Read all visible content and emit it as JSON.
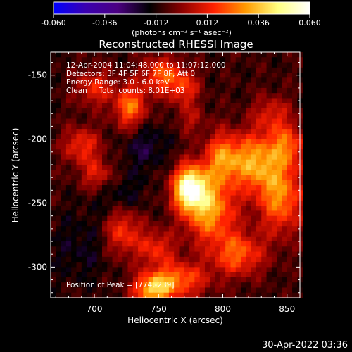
{
  "chart_data": {
    "type": "heatmap",
    "title": "Reconstructed RHESSI Image",
    "xlabel": "Heliocentric X (arcsec)",
    "ylabel": "Heliocentric Y (arcsec)",
    "xlim": [
      666,
      860
    ],
    "ylim": [
      -324,
      -132
    ],
    "x_ticks": [
      700,
      750,
      800,
      850
    ],
    "y_ticks": [
      -150,
      -200,
      -250,
      -300
    ],
    "colorbar": {
      "range": [
        -0.06,
        0.06
      ],
      "ticks": [
        "-0.060",
        "-0.036",
        "-0.012",
        "0.012",
        "0.036",
        "0.060"
      ],
      "unit": "(photons cm⁻² s⁻¹ asec⁻²)",
      "colors": [
        "#0000ff",
        "#3a00b0",
        "#4b0082",
        "#000000",
        "#8b0000",
        "#ff2000",
        "#ff9a00",
        "#ffff80",
        "#ffffff"
      ]
    },
    "annotations": {
      "line1": "12-Apr-2004 11:04:48.000 to 11:07:12.000",
      "line2": "Detectors: 3F 4F 5F 6F 7F 8F, Att 0",
      "line3": "Energy Range: 3.0 - 6.0 keV",
      "line4": "Clean     Total counts: 8.01E+03",
      "peak": "Position of Peak = [774,-239]"
    },
    "peak_position": [
      774,
      -239
    ],
    "sources": [
      {
        "x": 774,
        "y": -238,
        "amp": 0.062,
        "sx": 9,
        "sy": 12
      },
      {
        "x": 790,
        "y": -255,
        "amp": 0.04,
        "sx": 14,
        "sy": 18
      },
      {
        "x": 800,
        "y": -215,
        "amp": 0.035,
        "sx": 10,
        "sy": 14
      },
      {
        "x": 825,
        "y": -218,
        "amp": 0.038,
        "sx": 12,
        "sy": 16
      },
      {
        "x": 845,
        "y": -245,
        "amp": 0.036,
        "sx": 12,
        "sy": 20
      },
      {
        "x": 850,
        "y": -205,
        "amp": 0.028,
        "sx": 10,
        "sy": 12
      },
      {
        "x": 812,
        "y": -290,
        "amp": 0.03,
        "sx": 14,
        "sy": 12
      },
      {
        "x": 765,
        "y": -310,
        "amp": 0.032,
        "sx": 16,
        "sy": 10
      },
      {
        "x": 748,
        "y": -285,
        "amp": 0.022,
        "sx": 10,
        "sy": 10
      },
      {
        "x": 722,
        "y": -272,
        "amp": 0.026,
        "sx": 10,
        "sy": 14
      },
      {
        "x": 745,
        "y": -318,
        "amp": 0.04,
        "sx": 10,
        "sy": 8
      },
      {
        "x": 728,
        "y": -175,
        "amp": 0.034,
        "sx": 9,
        "sy": 12
      },
      {
        "x": 752,
        "y": -150,
        "amp": 0.03,
        "sx": 10,
        "sy": 10
      },
      {
        "x": 770,
        "y": -160,
        "amp": 0.024,
        "sx": 8,
        "sy": 10
      },
      {
        "x": 700,
        "y": -160,
        "amp": 0.022,
        "sx": 10,
        "sy": 10
      },
      {
        "x": 690,
        "y": -205,
        "amp": 0.024,
        "sx": 10,
        "sy": 10
      },
      {
        "x": 702,
        "y": -228,
        "amp": 0.02,
        "sx": 9,
        "sy": 9
      },
      {
        "x": 838,
        "y": -180,
        "amp": 0.018,
        "sx": 10,
        "sy": 10
      },
      {
        "x": 775,
        "y": -185,
        "amp": 0.012,
        "sx": 8,
        "sy": 8
      },
      {
        "x": 720,
        "y": -245,
        "amp": -0.01,
        "sx": 14,
        "sy": 12
      },
      {
        "x": 740,
        "y": -205,
        "amp": -0.012,
        "sx": 12,
        "sy": 14
      },
      {
        "x": 690,
        "y": -285,
        "amp": -0.008,
        "sx": 18,
        "sy": 20
      }
    ],
    "timestamp": "30-Apr-2022 03:36"
  }
}
